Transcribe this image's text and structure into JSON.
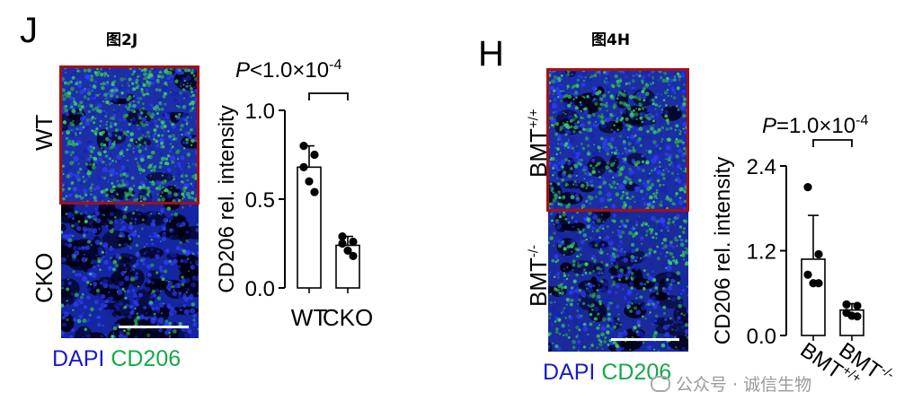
{
  "left_panel": {
    "letter": "J",
    "figure_label": "图2J",
    "row_labels": [
      "WT",
      "CKO"
    ],
    "stain_blue": "DAPI",
    "stain_green": "CD206",
    "p_prefix": "P",
    "p_value": "<1.0×10",
    "p_exp": "-4"
  },
  "right_panel": {
    "letter": "H",
    "figure_label": "图4H",
    "row_labels": [
      {
        "base": "BMT",
        "sup": "+/+"
      },
      {
        "base": "BMT",
        "sup": "-/-"
      }
    ],
    "stain_blue": "DAPI",
    "stain_green": "CD206",
    "p_prefix": "P",
    "p_value": "=1.0×10",
    "p_exp": "-4"
  },
  "watermark": "公众号 · 诚信生物",
  "colors": {
    "dapi": "#1a1acc",
    "cd206": "#16a84a",
    "frame": "#a80e12"
  },
  "chart_data": [
    {
      "type": "bar",
      "ylabel": "CD206 rel. intensity",
      "categories": [
        "WT",
        "CKO"
      ],
      "ylim": [
        0,
        1.0
      ],
      "yticks": [
        "0.0",
        "0.5",
        "1.0"
      ],
      "means": [
        0.68,
        0.24
      ],
      "errors": [
        0.12,
        0.05
      ],
      "points": [
        [
          0.8,
          0.75,
          0.68,
          0.6,
          0.54
        ],
        [
          0.29,
          0.26,
          0.25,
          0.21,
          0.18
        ]
      ]
    },
    {
      "type": "bar",
      "ylabel": "CD206 rel. intensity",
      "categories": [
        "BMT+/+",
        "BMT-/-"
      ],
      "ylim": [
        0,
        2.4
      ],
      "yticks": [
        "0.0",
        "1.2",
        "2.4"
      ],
      "means": [
        1.08,
        0.36
      ],
      "errors": [
        0.62,
        0.09
      ],
      "points": [
        [
          2.1,
          1.15,
          0.86,
          0.74,
          0.74
        ],
        [
          0.44,
          0.42,
          0.32,
          0.28,
          0.27
        ]
      ]
    }
  ]
}
